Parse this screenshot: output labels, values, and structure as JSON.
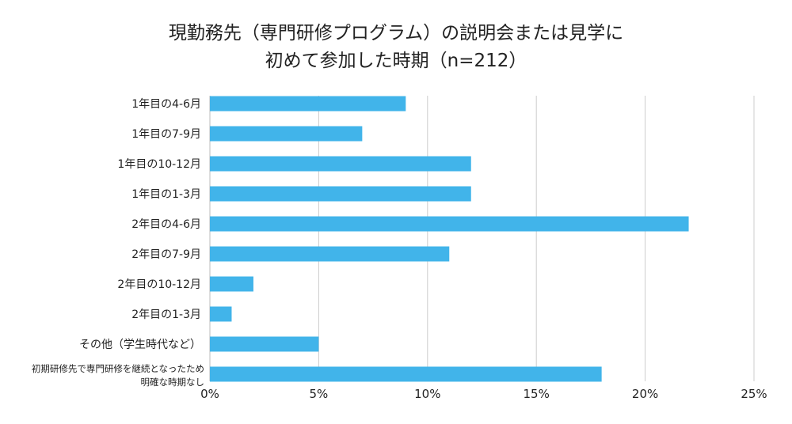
{
  "chart_data": {
    "type": "bar",
    "orientation": "horizontal",
    "title": [
      "現勤務先（専門研修プログラム）の説明会または見学に",
      "初めて参加した時期（n=212）"
    ],
    "categories": [
      [
        "1年目の4-6月"
      ],
      [
        "1年目の7-9月"
      ],
      [
        "1年目の10-12月"
      ],
      [
        "1年目の1-3月"
      ],
      [
        "2年目の4-6月"
      ],
      [
        "2年目の7-9月"
      ],
      [
        "2年目の10-12月"
      ],
      [
        "2年目の1-3月"
      ],
      [
        "その他（学生時代など）"
      ],
      [
        "初期研修先で専門研修を継続となったため",
        "明確な時期なし"
      ]
    ],
    "values": [
      9,
      7,
      12,
      12,
      22,
      11,
      2,
      1,
      5,
      18
    ],
    "xlim": [
      0,
      25
    ],
    "xticks": [
      0,
      5,
      10,
      15,
      20,
      25
    ],
    "xtick_labels": [
      "0%",
      "5%",
      "10%",
      "15%",
      "20%",
      "25%"
    ],
    "grid": true,
    "bar_color": "#41b4ea",
    "grid_color": "#cccccc"
  }
}
